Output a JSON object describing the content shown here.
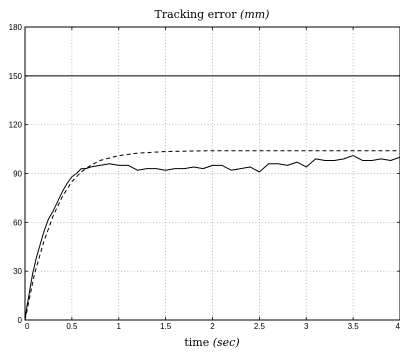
{
  "chart_data": {
    "type": "line",
    "title": {
      "text": "Tracking error ",
      "math": "(mm)"
    },
    "xlabel": {
      "text": "time ",
      "math": "(sec)"
    },
    "ylabel": "",
    "xlim": [
      0,
      4
    ],
    "ylim": [
      0,
      180
    ],
    "xticks": [
      0,
      0.5,
      1,
      1.5,
      2,
      2.5,
      3,
      3.5,
      4
    ],
    "xtick_labels": [
      "0",
      "0.5",
      "1",
      "1.5",
      "2",
      "2.5",
      "3",
      "3.5",
      "4"
    ],
    "yticks": [
      0,
      30,
      60,
      90,
      120,
      150,
      180
    ],
    "ytick_labels": [
      "0",
      "30",
      "60",
      "90",
      "120",
      "150",
      "180"
    ],
    "grid": true,
    "series": [
      {
        "style": "solid",
        "x": [
          0,
          0.02,
          0.05,
          0.08,
          0.12,
          0.16,
          0.2,
          0.25,
          0.3,
          0.35,
          0.4,
          0.45,
          0.5,
          0.55,
          0.6,
          0.65,
          0.7,
          0.8,
          0.9,
          1.0,
          1.1,
          1.2,
          1.3,
          1.4,
          1.5,
          1.6,
          1.7,
          1.8,
          1.9,
          2.0,
          2.1,
          2.2,
          2.3,
          2.4,
          2.5,
          2.6,
          2.7,
          2.8,
          2.9,
          3.0,
          3.1,
          3.2,
          3.3,
          3.4,
          3.5,
          3.6,
          3.7,
          3.8,
          3.9,
          4.0
        ],
        "y": [
          0,
          8,
          18,
          28,
          38,
          46,
          54,
          62,
          67,
          73,
          79,
          84,
          88,
          90,
          93,
          93,
          94,
          95,
          96,
          95,
          95,
          92,
          93,
          93,
          92,
          93,
          93,
          94,
          93,
          95,
          95,
          92,
          93,
          94,
          91,
          96,
          96,
          95,
          97,
          94,
          99,
          98,
          98,
          99,
          101,
          98,
          98,
          99,
          98,
          100
        ]
      },
      {
        "style": "dashed",
        "x": [
          0,
          0.1,
          0.2,
          0.3,
          0.4,
          0.5,
          0.6,
          0.7,
          0.8,
          1.0,
          1.2,
          1.5,
          2.0,
          2.5,
          3.0,
          3.5,
          4.0
        ],
        "y": [
          0,
          28,
          48,
          64,
          76,
          85,
          91,
          95,
          98,
          101,
          102.5,
          103.5,
          104,
          104,
          104,
          104,
          104
        ]
      },
      {
        "style": "solid",
        "x": [
          0,
          4
        ],
        "y": [
          150,
          150
        ]
      }
    ]
  }
}
